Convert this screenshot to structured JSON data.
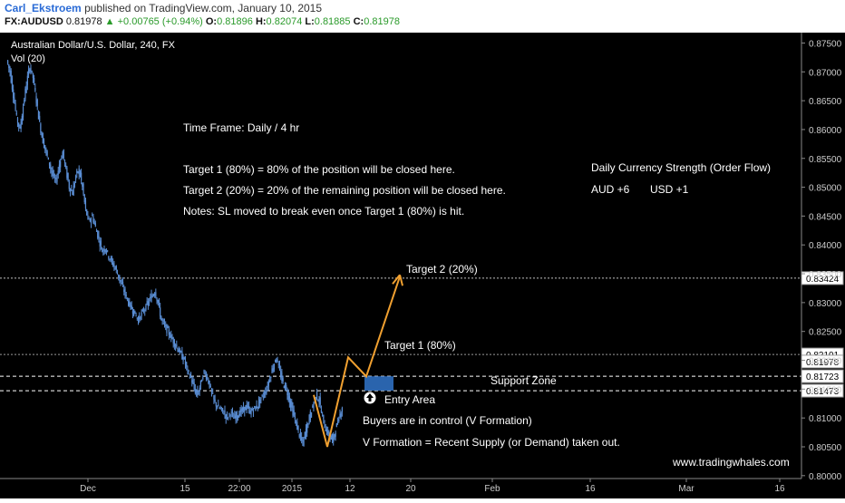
{
  "header": {
    "author": "Carl_Ekstroem",
    "published": "published on TradingView.com, January 10, 2015",
    "symbol": "FX:AUDUSD",
    "last": "0.81978",
    "change": "▲ +0.00765 (+0.94%)",
    "o_label": "O:",
    "o_value": "0.81896",
    "h_label": "H:",
    "h_value": "0.82074",
    "l_label": "L:",
    "l_value": "0.81885",
    "c_label": "C:",
    "c_value": "0.81978"
  },
  "chart": {
    "title": "Australian Dollar/U.S. Dollar, 240, FX",
    "subtitle": "Vol (20)",
    "watermark": "www.tradingwhales.com",
    "colors": {
      "background": "#000000",
      "candle": "#5b8fd6",
      "arrow": "#f0a030",
      "zone": "#2f6fc0",
      "text": "#ffffff",
      "axis_text": "#cccccc"
    }
  },
  "annotations": {
    "timeframe": "Time Frame: Daily / 4 hr",
    "target1_note": "Target 1 (80%) = 80% of the position will be closed here.",
    "target2_note": "Target 2 (20%) = 20% of the remaining position will be closed here.",
    "notes": "Notes: SL moved to break even once Target 1 (80%) is hit.",
    "strength_title": "Daily Currency Strength (Order Flow)",
    "aud": "AUD +6",
    "usd": "USD +1",
    "target2_label": "Target 2 (20%)",
    "target1_label": "Target 1 (80%)",
    "support_label": "Support Zone",
    "entry_label": "Entry Area",
    "buyers": "Buyers are in control (V Formation)",
    "vformation": "V Formation = Recent Supply (or Demand) taken out."
  },
  "chart_data": {
    "type": "candlestick",
    "ylim": [
      0.7995,
      0.8768
    ],
    "y_ticks": [
      "0.87500",
      "0.87000",
      "0.86500",
      "0.86000",
      "0.85500",
      "0.85000",
      "0.84500",
      "0.84000",
      "0.83500",
      "0.83000",
      "0.82500",
      "0.82000",
      "0.81500",
      "0.81000",
      "0.80500",
      "0.80000"
    ],
    "x_ticks": [
      "Dec",
      "15",
      "22:00",
      "2015",
      "12",
      "20",
      "Feb",
      "16",
      "Mar",
      "16"
    ],
    "levels": [
      {
        "name": "target-2",
        "value": 0.83424,
        "label": "0.83424"
      },
      {
        "name": "target-1",
        "value": 0.82101,
        "label": "0.82101"
      },
      {
        "name": "last-price",
        "value": 0.81978,
        "label": "0.81978"
      },
      {
        "name": "support-top",
        "value": 0.81723,
        "label": "0.81723"
      },
      {
        "name": "support-bottom",
        "value": 0.81473,
        "label": "0.81473"
      }
    ],
    "price_path": [
      0.872,
      0.87,
      0.866,
      0.862,
      0.86,
      0.864,
      0.868,
      0.871,
      0.869,
      0.865,
      0.861,
      0.858,
      0.856,
      0.854,
      0.852,
      0.851,
      0.854,
      0.856,
      0.853,
      0.85,
      0.849,
      0.852,
      0.853,
      0.85,
      0.846,
      0.844,
      0.845,
      0.843,
      0.841,
      0.839,
      0.8395,
      0.838,
      0.837,
      0.836,
      0.8345,
      0.833,
      0.8315,
      0.83,
      0.829,
      0.828,
      0.827,
      0.828,
      0.829,
      0.83,
      0.831,
      0.832,
      0.83,
      0.827,
      0.826,
      0.825,
      0.824,
      0.823,
      0.822,
      0.821,
      0.82,
      0.818,
      0.817,
      0.815,
      0.814,
      0.816,
      0.818,
      0.817,
      0.815,
      0.813,
      0.812,
      0.8115,
      0.811,
      0.81,
      0.811,
      0.81,
      0.8105,
      0.811,
      0.8115,
      0.812,
      0.811,
      0.8115,
      0.812,
      0.813,
      0.814,
      0.815,
      0.817,
      0.819,
      0.8205,
      0.818,
      0.816,
      0.815,
      0.813,
      0.811,
      0.809,
      0.807,
      0.8055,
      0.808,
      0.81,
      0.812,
      0.814,
      0.813,
      0.81,
      0.808,
      0.807,
      0.806,
      0.808,
      0.81,
      0.812
    ],
    "projection_y": [
      0.814,
      0.805,
      0.8205,
      0.8172,
      0.8345
    ]
  }
}
